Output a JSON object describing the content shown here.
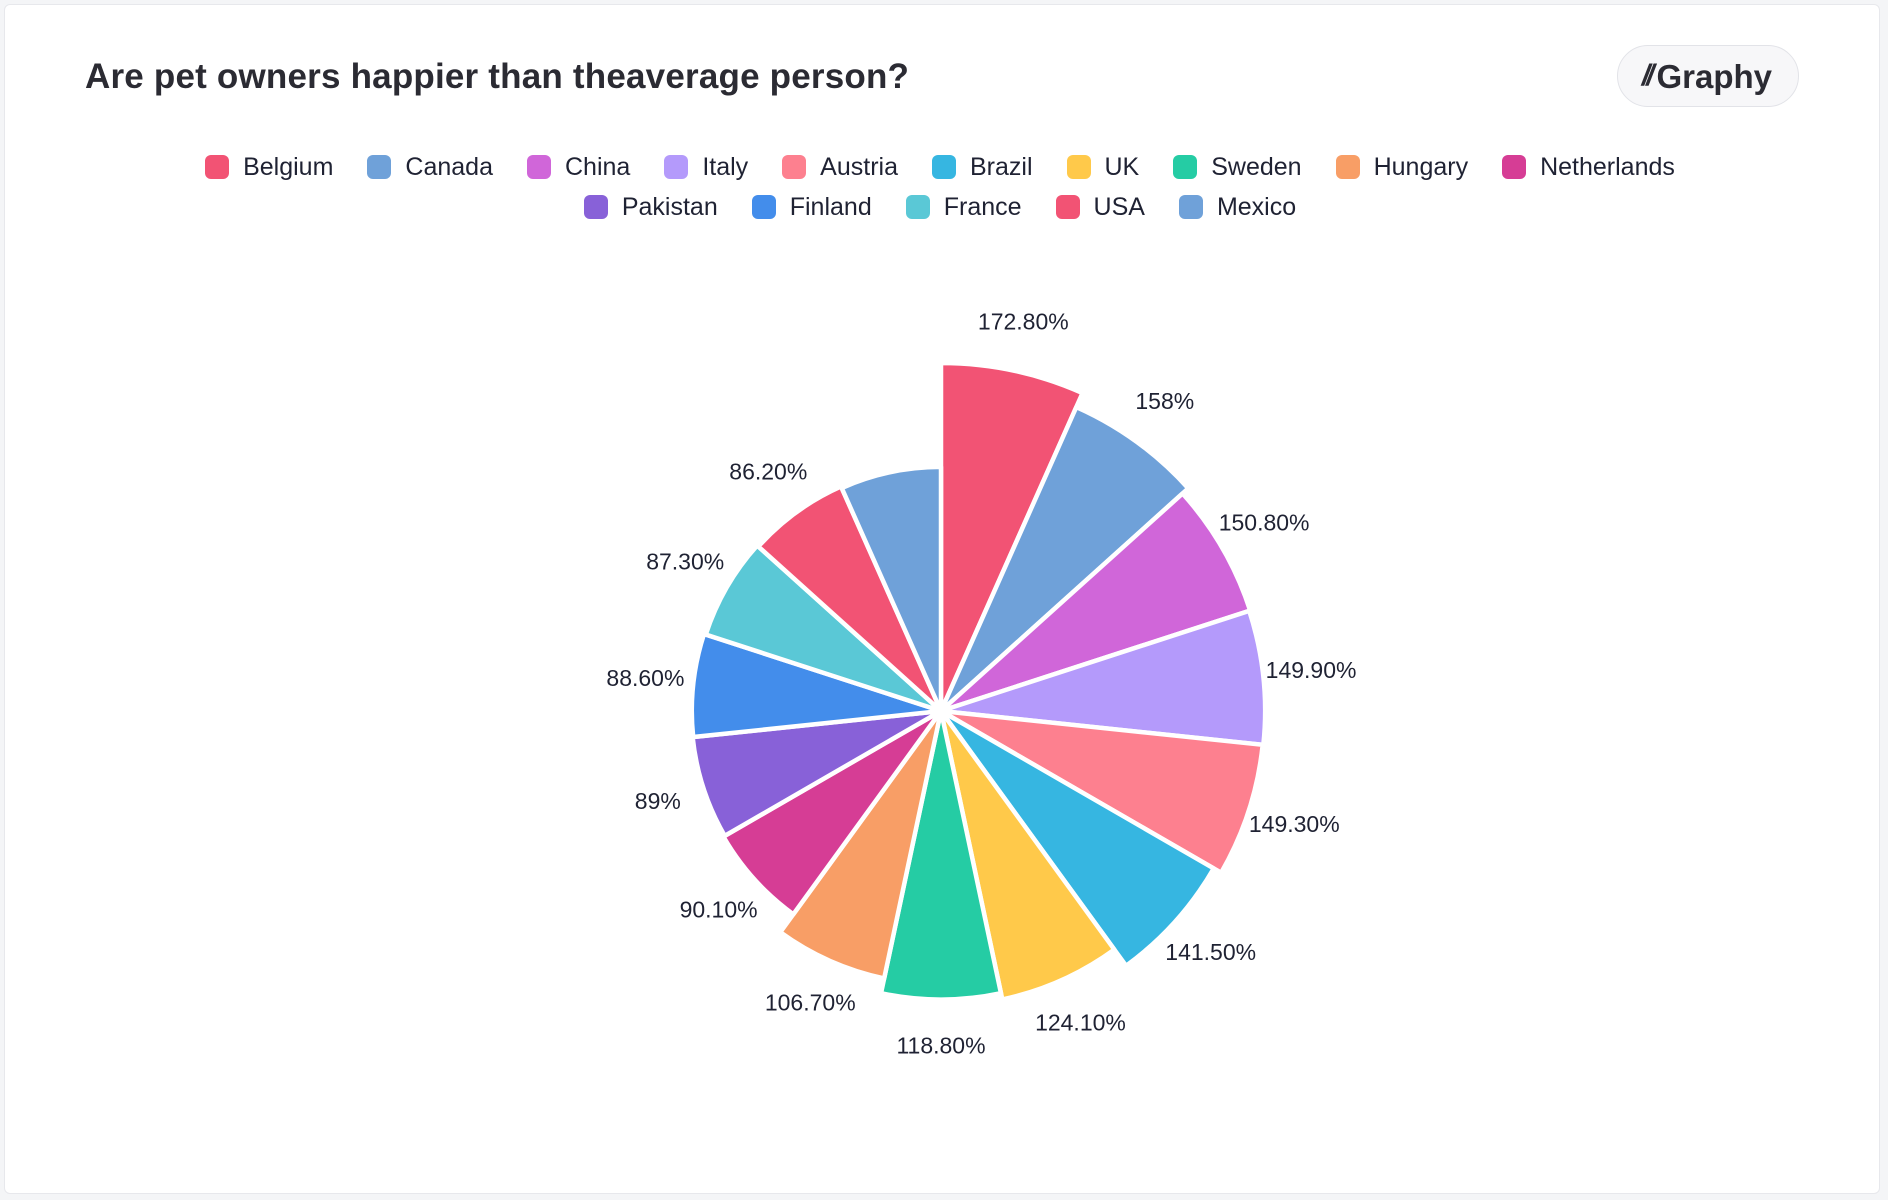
{
  "header": {
    "title": "Are pet owners happier than theaverage person?",
    "brand": "Graphy"
  },
  "chart_data": {
    "type": "pie",
    "variant": "rose",
    "title": "Are pet owners happier than theaverage person?",
    "legend_position": "top-center",
    "categories": [
      "Belgium",
      "Canada",
      "China",
      "Italy",
      "Austria",
      "Brazil",
      "UK",
      "Sweden",
      "Hungary",
      "Netherlands",
      "Pakistan",
      "Finland",
      "France",
      "USA",
      "Mexico"
    ],
    "values": [
      172.8,
      158,
      150.8,
      149.9,
      149.3,
      141.5,
      124.1,
      118.8,
      106.7,
      90.1,
      89,
      88.6,
      87.3,
      86.2,
      85
    ],
    "labels": [
      "172.80%",
      "158%",
      "150.80%",
      "149.90%",
      "149.30%",
      "141.50%",
      "124.10%",
      "118.80%",
      "106.70%",
      "90.10%",
      "89%",
      "88.60%",
      "87.30%",
      "86.20%",
      ""
    ],
    "colors": [
      "#f25374",
      "#6fa1d9",
      "#d066d9",
      "#b49afb",
      "#fd808f",
      "#36b6e1",
      "#ffc94a",
      "#25cca4",
      "#f89e66",
      "#d63d95",
      "#8861d8",
      "#438deb",
      "#5ac8d6",
      "#f25374",
      "#6fa1d9"
    ]
  }
}
